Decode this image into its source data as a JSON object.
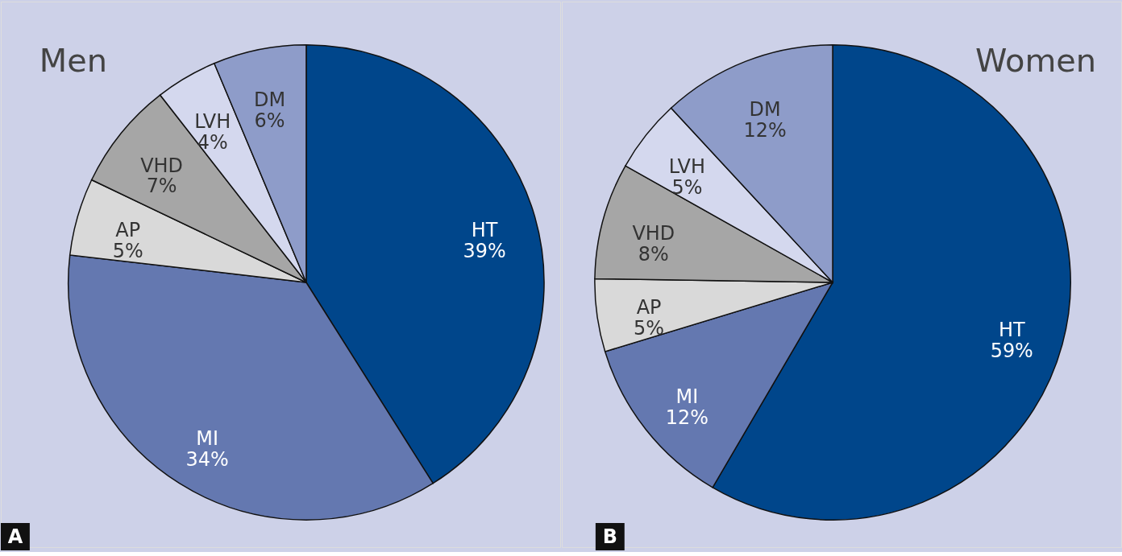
{
  "chart_data": [
    {
      "type": "pie",
      "title": "Men",
      "categories": [
        "HT",
        "MI",
        "AP",
        "VHD",
        "LVH",
        "DM"
      ],
      "values": [
        39,
        34,
        5,
        7,
        4,
        6
      ],
      "value_labels": [
        "39%",
        "34%",
        "5%",
        "7%",
        "4%",
        "6%"
      ],
      "colors": [
        "#00468b",
        "#6478b0",
        "#d9d9d9",
        "#a6a6a6",
        "#d4d8ee",
        "#8e9cc9"
      ],
      "legend": false,
      "annotations": [
        "A"
      ]
    },
    {
      "type": "pie",
      "title": "Women",
      "categories": [
        "HT",
        "MI",
        "AP",
        "VHD",
        "LVH",
        "DM"
      ],
      "values": [
        59,
        12,
        5,
        8,
        5,
        12
      ],
      "value_labels": [
        "59%",
        "12%",
        "5%",
        "8%",
        "5%",
        "12%"
      ],
      "colors": [
        "#00468b",
        "#6478b0",
        "#d9d9d9",
        "#a6a6a6",
        "#d4d8ee",
        "#8e9cc9"
      ],
      "legend": false,
      "annotations": [
        "B"
      ]
    }
  ]
}
